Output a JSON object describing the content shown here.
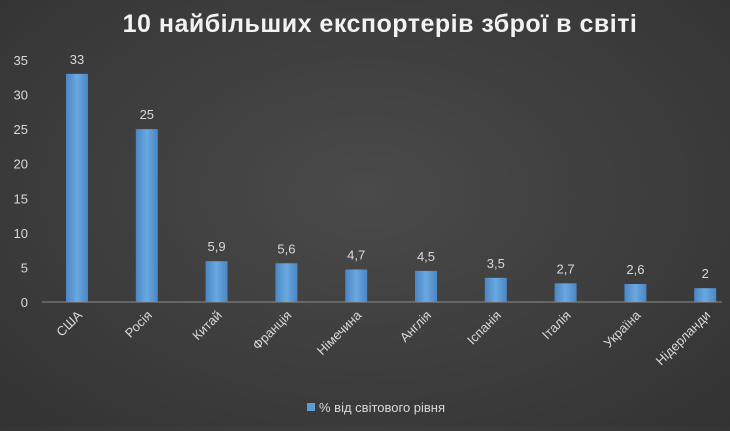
{
  "chart_data": {
    "type": "bar",
    "title": "10 найбільших експортерів зброї в світі",
    "categories": [
      "США",
      "Росія",
      "Китай",
      "Франція",
      "Німечина",
      "Англія",
      "Іспанія",
      "Італія",
      "Україна",
      "Нідерланди"
    ],
    "series": [
      {
        "name": "% від світового рівня",
        "values": [
          33,
          25,
          5.9,
          5.6,
          4.7,
          4.5,
          3.5,
          2.7,
          2.6,
          2
        ],
        "labels": [
          "33",
          "25",
          "5,9",
          "5,6",
          "4,7",
          "4,5",
          "3,5",
          "2,7",
          "2,6",
          "2"
        ],
        "color": "#5b9bd5"
      }
    ],
    "yticks": [
      "0",
      "5",
      "10",
      "15",
      "20",
      "25",
      "30",
      "35"
    ],
    "ylim": [
      0,
      35
    ],
    "grid": false,
    "legend": "bottom"
  }
}
